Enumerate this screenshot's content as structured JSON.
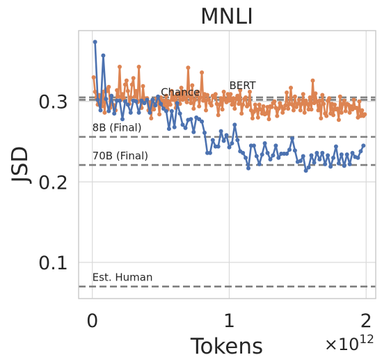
{
  "chart_data": {
    "type": "line",
    "title": "MNLI",
    "xlabel": "Tokens",
    "ylabel": "JSD",
    "x_offset_text": "×10^12",
    "xlim": [
      -0.1,
      2.07
    ],
    "ylim": [
      0.055,
      0.388
    ],
    "xticks": [
      0,
      1,
      2
    ],
    "xtick_labels": [
      "0",
      "1",
      "2"
    ],
    "yticks": [
      0.1,
      0.2,
      0.3
    ],
    "ytick_labels": [
      "0.1",
      "0.2",
      "0.3"
    ],
    "grid": true,
    "colors": {
      "blue": "#4c72b0",
      "orange": "#dd8452",
      "ref": "#7f7f7f",
      "grid": "#d9d9d9",
      "frame": "#c8c8c8"
    },
    "reference_lines": [
      {
        "label": "Chance",
        "y": 0.302
      },
      {
        "label": "BERT",
        "y": 0.305
      },
      {
        "label": "8B (Final)",
        "y": 0.256
      },
      {
        "label": "70B (Final)",
        "y": 0.221
      },
      {
        "label": "Est. Human",
        "y": 0.07
      }
    ],
    "series": [
      {
        "color": "#4c72b0",
        "x": [
          0.02,
          0.04,
          0.06,
          0.08,
          0.1,
          0.12,
          0.14,
          0.16,
          0.18,
          0.2,
          0.22,
          0.24,
          0.26,
          0.28,
          0.3,
          0.32,
          0.34,
          0.36,
          0.38,
          0.4,
          0.42,
          0.44,
          0.46,
          0.48,
          0.5,
          0.52,
          0.54,
          0.56,
          0.58,
          0.6,
          0.62,
          0.64,
          0.66,
          0.68,
          0.7,
          0.72,
          0.74,
          0.76,
          0.78,
          0.8,
          0.82,
          0.84,
          0.86,
          0.88,
          0.9,
          0.92,
          0.94,
          0.96,
          0.98,
          1.0,
          1.02,
          1.04,
          1.06,
          1.08,
          1.1,
          1.12,
          1.14,
          1.16,
          1.18,
          1.2,
          1.22,
          1.24,
          1.26,
          1.28,
          1.3,
          1.32,
          1.34,
          1.36,
          1.38,
          1.4,
          1.42,
          1.44,
          1.46,
          1.48,
          1.5,
          1.52,
          1.54,
          1.56,
          1.58,
          1.6,
          1.62,
          1.64,
          1.66,
          1.68,
          1.7,
          1.72,
          1.74,
          1.76,
          1.78,
          1.8,
          1.82,
          1.84,
          1.86,
          1.88,
          1.9,
          1.92,
          1.94,
          1.96,
          1.98
        ],
        "y": [
          0.374,
          0.302,
          0.289,
          0.357,
          0.303,
          0.288,
          0.307,
          0.285,
          0.301,
          0.301,
          0.278,
          0.3,
          0.296,
          0.286,
          0.301,
          0.3,
          0.286,
          0.301,
          0.298,
          0.302,
          0.286,
          0.302,
          0.295,
          0.306,
          0.297,
          0.291,
          0.288,
          0.266,
          0.288,
          0.268,
          0.298,
          0.285,
          0.271,
          0.267,
          0.277,
          0.278,
          0.262,
          0.28,
          0.278,
          0.275,
          0.261,
          0.236,
          0.236,
          0.252,
          0.244,
          0.244,
          0.263,
          0.251,
          0.258,
          0.243,
          0.248,
          0.271,
          0.252,
          0.238,
          0.236,
          0.23,
          0.217,
          0.245,
          0.245,
          0.232,
          0.222,
          0.234,
          0.248,
          0.236,
          0.228,
          0.233,
          0.245,
          0.23,
          0.235,
          0.235,
          0.235,
          0.24,
          0.254,
          0.239,
          0.225,
          0.226,
          0.232,
          0.214,
          0.218,
          0.233,
          0.224,
          0.236,
          0.228,
          0.236,
          0.222,
          0.233,
          0.219,
          0.23,
          0.244,
          0.223,
          0.234,
          0.22,
          0.234,
          0.222,
          0.236,
          0.231,
          0.23,
          0.238,
          0.245
        ]
      },
      {
        "color": "#dd8452",
        "x": [
          0.01,
          0.02,
          0.03,
          0.04,
          0.05,
          0.06,
          0.07,
          0.08,
          0.09,
          0.1,
          0.11,
          0.12,
          0.13,
          0.14,
          0.15,
          0.16,
          0.17,
          0.18,
          0.19,
          0.2,
          0.21,
          0.22,
          0.23,
          0.24,
          0.25,
          0.26,
          0.27,
          0.28,
          0.29,
          0.3,
          0.31,
          0.32,
          0.33,
          0.34,
          0.35,
          0.36,
          0.37,
          0.38,
          0.39,
          0.4,
          0.41,
          0.42,
          0.43,
          0.44,
          0.45,
          0.46,
          0.47,
          0.48,
          0.49,
          0.5,
          0.51,
          0.52,
          0.53,
          0.54,
          0.55,
          0.56,
          0.57,
          0.58,
          0.59,
          0.6,
          0.61,
          0.62,
          0.63,
          0.64,
          0.65,
          0.66,
          0.67,
          0.68,
          0.69,
          0.7,
          0.71,
          0.72,
          0.73,
          0.74,
          0.75,
          0.76,
          0.77,
          0.78,
          0.79,
          0.8,
          0.81,
          0.82,
          0.83,
          0.84,
          0.85,
          0.86,
          0.87,
          0.88,
          0.89,
          0.9,
          0.91,
          0.92,
          0.93,
          0.94,
          0.95,
          0.96,
          0.97,
          0.98,
          0.99,
          1.0,
          1.01,
          1.02,
          1.03,
          1.04,
          1.05,
          1.06,
          1.07,
          1.08,
          1.09,
          1.1,
          1.11,
          1.12,
          1.13,
          1.14,
          1.15,
          1.16,
          1.17,
          1.18,
          1.19,
          1.2,
          1.21,
          1.22,
          1.23,
          1.24,
          1.25,
          1.26,
          1.27,
          1.28,
          1.29,
          1.3,
          1.31,
          1.32,
          1.33,
          1.34,
          1.35,
          1.36,
          1.37,
          1.38,
          1.39,
          1.4,
          1.41,
          1.42,
          1.43,
          1.44,
          1.45,
          1.46,
          1.47,
          1.48,
          1.49,
          1.5,
          1.51,
          1.52,
          1.53,
          1.54,
          1.55,
          1.56,
          1.57,
          1.58,
          1.59,
          1.6,
          1.61,
          1.62,
          1.63,
          1.64,
          1.65,
          1.66,
          1.67,
          1.68,
          1.69,
          1.7,
          1.71,
          1.72,
          1.73,
          1.74,
          1.75,
          1.76,
          1.77,
          1.78,
          1.79,
          1.8,
          1.81,
          1.82,
          1.83,
          1.84,
          1.85,
          1.86,
          1.87,
          1.88,
          1.89,
          1.9,
          1.91,
          1.92,
          1.93,
          1.94,
          1.95,
          1.96,
          1.97,
          1.98,
          1.99
        ],
        "y": [
          0.33,
          0.312,
          0.305,
          0.296,
          0.308,
          0.298,
          0.294,
          0.312,
          0.286,
          0.315,
          0.313,
          0.318,
          0.292,
          0.301,
          0.296,
          0.295,
          0.289,
          0.314,
          0.306,
          0.343,
          0.302,
          0.309,
          0.304,
          0.321,
          0.326,
          0.313,
          0.297,
          0.305,
          0.321,
          0.329,
          0.306,
          0.313,
          0.299,
          0.343,
          0.301,
          0.292,
          0.319,
          0.303,
          0.301,
          0.304,
          0.289,
          0.299,
          0.279,
          0.302,
          0.29,
          0.296,
          0.304,
          0.3,
          0.284,
          0.305,
          0.296,
          0.301,
          0.294,
          0.307,
          0.29,
          0.3,
          0.296,
          0.313,
          0.302,
          0.306,
          0.292,
          0.31,
          0.31,
          0.297,
          0.317,
          0.302,
          0.312,
          0.303,
          0.299,
          0.342,
          0.306,
          0.298,
          0.32,
          0.291,
          0.302,
          0.308,
          0.312,
          0.294,
          0.305,
          0.336,
          0.301,
          0.309,
          0.289,
          0.308,
          0.302,
          0.298,
          0.295,
          0.307,
          0.305,
          0.309,
          0.297,
          0.283,
          0.296,
          0.304,
          0.29,
          0.312,
          0.302,
          0.299,
          0.309,
          0.301,
          0.309,
          0.296,
          0.304,
          0.291,
          0.303,
          0.307,
          0.297,
          0.314,
          0.285,
          0.296,
          0.303,
          0.305,
          0.294,
          0.296,
          0.312,
          0.289,
          0.279,
          0.287,
          0.296,
          0.29,
          0.28,
          0.296,
          0.29,
          0.285,
          0.294,
          0.284,
          0.285,
          0.293,
          0.278,
          0.294,
          0.293,
          0.298,
          0.3,
          0.292,
          0.282,
          0.291,
          0.298,
          0.294,
          0.286,
          0.291,
          0.295,
          0.311,
          0.291,
          0.297,
          0.317,
          0.296,
          0.289,
          0.306,
          0.293,
          0.297,
          0.302,
          0.289,
          0.297,
          0.309,
          0.286,
          0.301,
          0.297,
          0.29,
          0.305,
          0.29,
          0.326,
          0.298,
          0.31,
          0.3,
          0.289,
          0.301,
          0.279,
          0.308,
          0.297,
          0.285,
          0.282,
          0.301,
          0.304,
          0.285,
          0.297,
          0.283,
          0.296,
          0.29,
          0.291,
          0.277,
          0.306,
          0.286,
          0.297,
          0.301,
          0.288,
          0.297,
          0.296,
          0.286,
          0.294,
          0.29,
          0.302,
          0.292,
          0.292,
          0.28,
          0.3,
          0.282,
          0.289,
          0.282,
          0.284
        ]
      }
    ]
  }
}
